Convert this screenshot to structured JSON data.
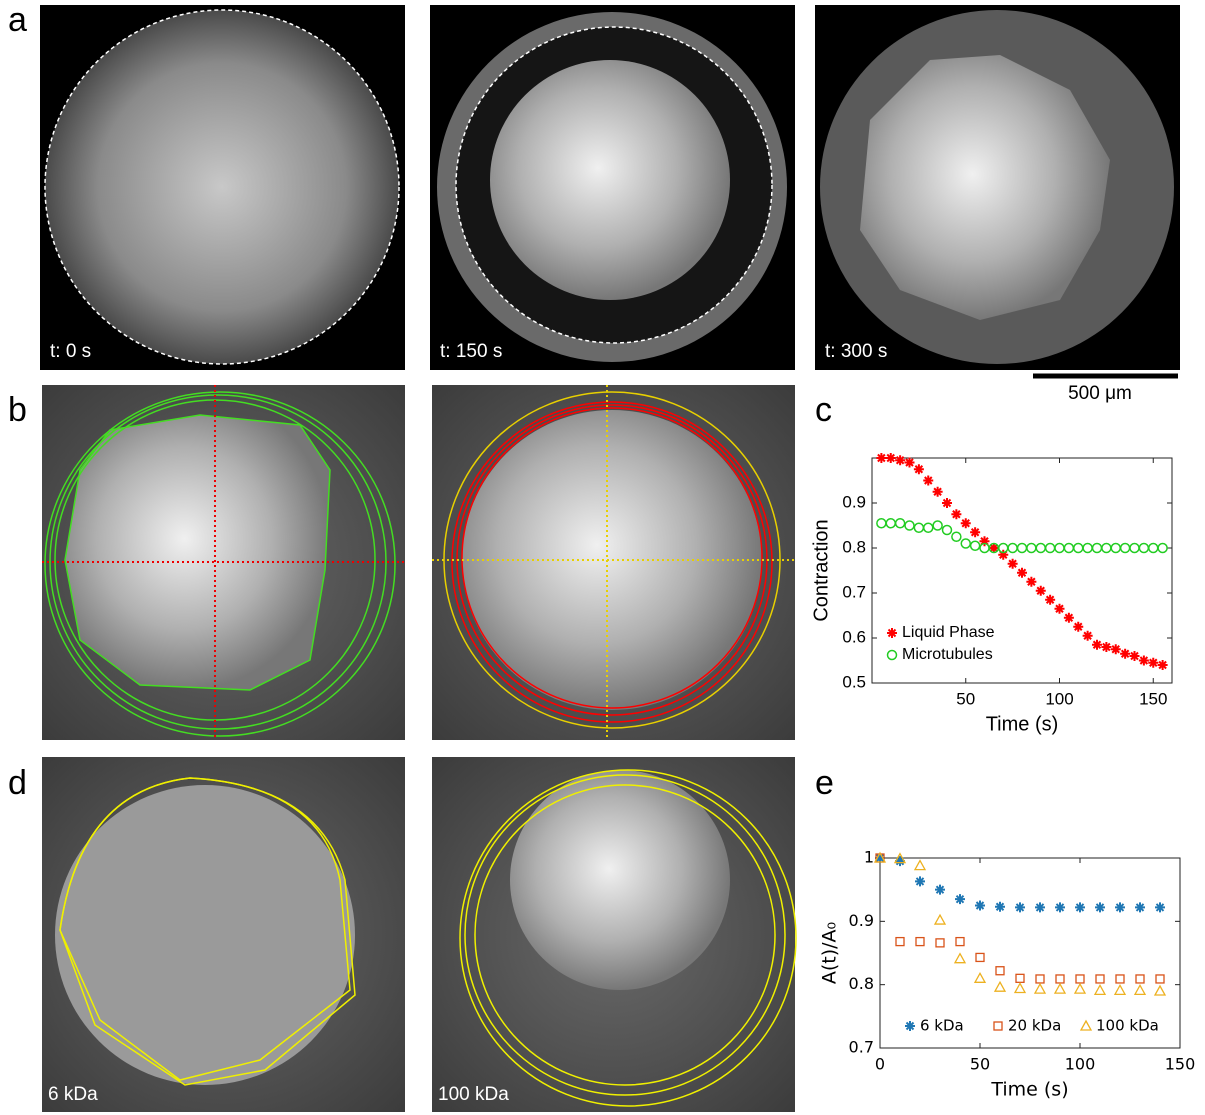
{
  "panel_labels": [
    "a",
    "b",
    "c",
    "d",
    "e"
  ],
  "image_labels": [
    "t: 0 s",
    "t: 150 s",
    "t: 300 s",
    "6 kDa",
    "100 kDa"
  ],
  "scale_bar": "500 μm",
  "chart_data": [
    {
      "type": "scatter",
      "xlabel": "Time (s)",
      "ylabel": "Contraction",
      "x": [
        5,
        10,
        15,
        20,
        25,
        30,
        35,
        40,
        45,
        50,
        55,
        60,
        65,
        70,
        75,
        80,
        85,
        90,
        95,
        100,
        105,
        110,
        115,
        120,
        125,
        130,
        135,
        140,
        145,
        150,
        155
      ],
      "xlim": [
        0,
        160
      ],
      "xticks": [
        50,
        100,
        150
      ],
      "ylim": [
        0.5,
        1.0
      ],
      "yticks": [
        0.5,
        0.6,
        0.7,
        0.8,
        0.9
      ],
      "legend": "lower left",
      "series": [
        {
          "name": "Liquid Phase",
          "color": "#ff0000",
          "marker": "asterisk",
          "values": [
            1.0,
            1.0,
            0.995,
            0.99,
            0.975,
            0.95,
            0.925,
            0.9,
            0.875,
            0.855,
            0.835,
            0.815,
            0.8,
            0.785,
            0.765,
            0.745,
            0.725,
            0.705,
            0.685,
            0.665,
            0.645,
            0.625,
            0.605,
            0.585,
            0.58,
            0.575,
            0.565,
            0.56,
            0.55,
            0.545,
            0.54
          ]
        },
        {
          "name": "Microtubules",
          "color": "#22cc22",
          "marker": "circle",
          "values": [
            0.855,
            0.855,
            0.855,
            0.85,
            0.845,
            0.845,
            0.85,
            0.84,
            0.825,
            0.81,
            0.805,
            0.8,
            0.8,
            0.8,
            0.8,
            0.8,
            0.8,
            0.8,
            0.8,
            0.8,
            0.8,
            0.8,
            0.8,
            0.8,
            0.8,
            0.8,
            0.8,
            0.8,
            0.8,
            0.8,
            0.8
          ]
        }
      ]
    },
    {
      "type": "scatter",
      "xlabel": "Time (s)",
      "ylabel": "A(t)/A₀",
      "x": [
        0,
        10,
        20,
        30,
        40,
        50,
        60,
        70,
        80,
        90,
        100,
        110,
        120,
        130,
        140
      ],
      "xlim": [
        0,
        150
      ],
      "xticks": [
        0,
        50,
        100,
        150
      ],
      "ylim": [
        0.7,
        1
      ],
      "yticks": [
        0.7,
        0.8,
        0.9,
        1
      ],
      "legend": "lower center",
      "series": [
        {
          "name": "6 kDa",
          "color": "#1f77b4",
          "marker": "asterisk",
          "values": [
            1,
            0.995,
            0.963,
            0.95,
            0.935,
            0.925,
            0.923,
            0.922,
            0.922,
            0.922,
            0.922,
            0.922,
            0.922,
            0.922,
            0.922
          ]
        },
        {
          "name": "20 kDa",
          "color": "#d95319",
          "marker": "square",
          "values": [
            1,
            0.868,
            0.868,
            0.866,
            0.868,
            0.843,
            0.822,
            0.81,
            0.809,
            0.809,
            0.809,
            0.809,
            0.809,
            0.809,
            0.809
          ]
        },
        {
          "name": "100 kDa",
          "color": "#edb120",
          "marker": "triangle",
          "values": [
            1,
            0.999,
            0.988,
            0.902,
            0.841,
            0.81,
            0.796,
            0.794,
            0.793,
            0.793,
            0.793,
            0.791,
            0.791,
            0.791,
            0.79
          ]
        }
      ]
    }
  ]
}
